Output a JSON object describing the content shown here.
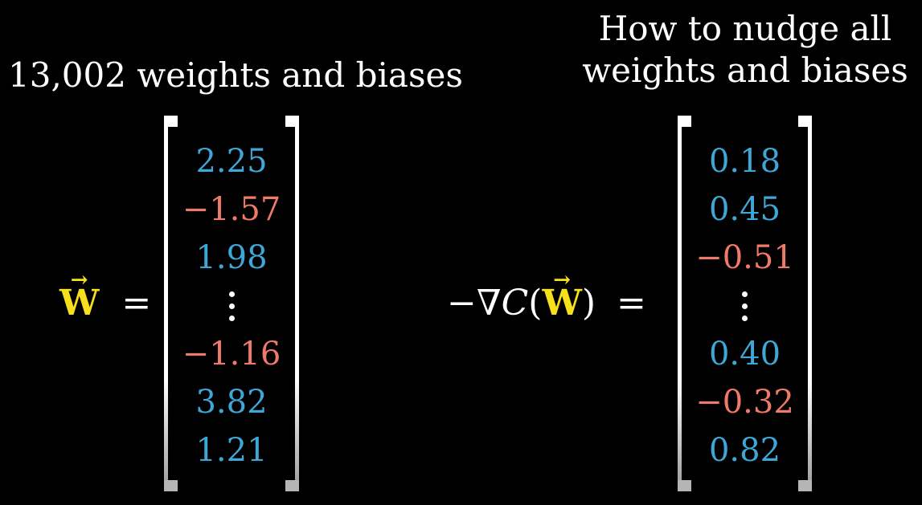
{
  "titles": {
    "left": "13,002 weights and biases",
    "right_line1": "How to nudge all",
    "right_line2": "weights and biases"
  },
  "left_equation": {
    "symbol": "W",
    "equals": "="
  },
  "right_equation": {
    "prefix": "−∇",
    "func": "C",
    "open_paren": "(",
    "symbol": "W",
    "close_paren": ")",
    "equals": "="
  },
  "weights_vector": [
    "2.25",
    "−1.57",
    "1.98",
    "⋮",
    "−1.16",
    "3.82",
    "1.21"
  ],
  "gradient_vector": [
    "0.18",
    "0.45",
    "−0.51",
    "⋮",
    "0.40",
    "−0.32",
    "0.82"
  ],
  "colors": {
    "positive": "#3fa7d6",
    "negative": "#f07a6a",
    "symbol": "#f6e01c",
    "text": "#ffffff",
    "background": "#000000"
  }
}
